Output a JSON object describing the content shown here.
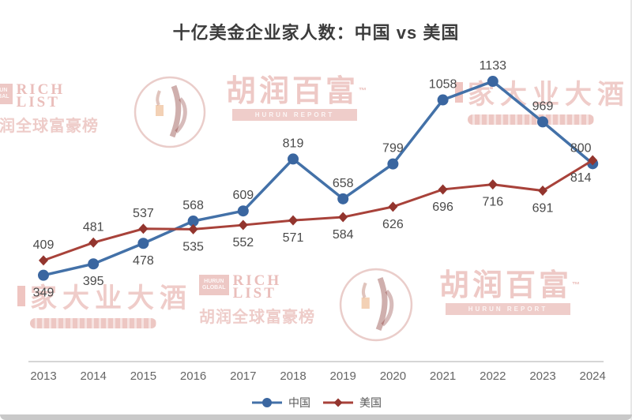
{
  "title": "十亿美金企业家人数：中国 vs 美国",
  "chart_data": {
    "type": "line",
    "title": "十亿美金企业家人数：中国 vs 美国",
    "categories": [
      "2013",
      "2014",
      "2015",
      "2016",
      "2017",
      "2018",
      "2019",
      "2020",
      "2021",
      "2022",
      "2023",
      "2024"
    ],
    "series": [
      {
        "name": "中国",
        "color": "#4371a8",
        "marker_color": "#3a66a0",
        "marker": "circle",
        "values": [
          349,
          395,
          478,
          568,
          609,
          819,
          658,
          799,
          1058,
          1133,
          969,
          800
        ],
        "label_positions": [
          "below",
          "below",
          "below",
          "above",
          "above",
          "above",
          "above",
          "above",
          "above",
          "above",
          "above",
          "above-left"
        ]
      },
      {
        "name": "美国",
        "color": "#a8423a",
        "marker_color": "#93352e",
        "marker": "diamond",
        "values": [
          409,
          481,
          537,
          535,
          552,
          571,
          584,
          626,
          696,
          716,
          691,
          814
        ],
        "label_positions": [
          "above",
          "above",
          "above",
          "below",
          "below",
          "below",
          "below",
          "below",
          "below",
          "below",
          "below",
          "below-left"
        ]
      }
    ],
    "ylim": [
      0,
      1200
    ],
    "xlabel": "",
    "ylabel": "",
    "grid": false,
    "legend_position": "bottom",
    "value_labels": true
  },
  "watermarks": {
    "rich_list_block": "HURUN\nGLOBAL",
    "rich_list_main": "RICH\nLIST",
    "rich_list_cn": "胡润全球富豪榜",
    "hurun_cn": "胡润百富",
    "hurun_tm": "™",
    "hurun_band": "HURUN REPORT",
    "jiu_cn": "家大业大酒"
  }
}
